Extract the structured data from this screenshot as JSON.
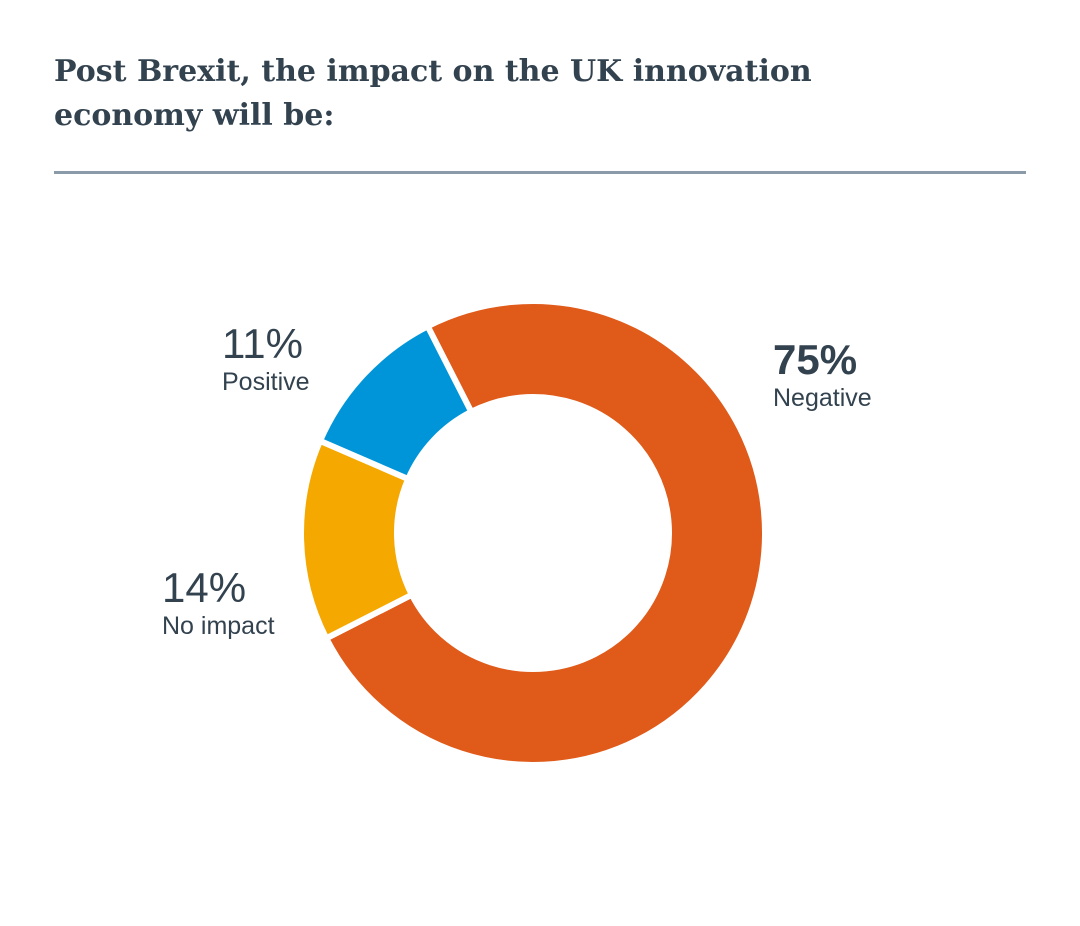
{
  "header": {
    "title": "Post Brexit, the impact on the UK innovation economy will be:"
  },
  "chart_data": {
    "type": "pie",
    "title": "Post Brexit, the impact on the UK innovation economy will be:",
    "style": "donut",
    "slices": [
      {
        "label": "Negative",
        "value": 75,
        "display": "75%",
        "color": "#e05a19"
      },
      {
        "label": "No impact",
        "value": 14,
        "display": "14%",
        "color": "#f5a800"
      },
      {
        "label": "Positive",
        "value": 11,
        "display": "11%",
        "color": "#0095d9"
      }
    ]
  }
}
